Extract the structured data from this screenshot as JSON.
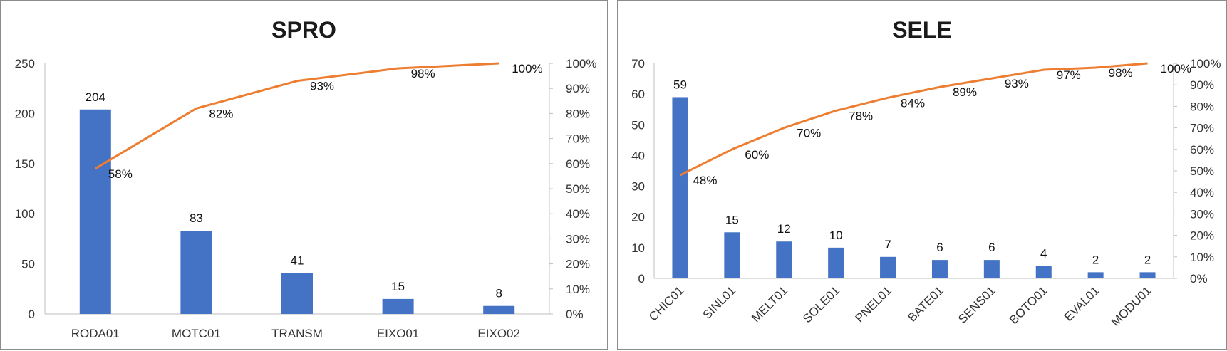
{
  "colors": {
    "bar": "#4472C4",
    "line": "#ED7D31",
    "axis": "#bfbfbf"
  },
  "chart_data": [
    {
      "type": "bar",
      "title": "SPRO",
      "categories": [
        "RODA01",
        "MOTC01",
        "TRANSM",
        "EIXO01",
        "EIXO02"
      ],
      "values": [
        204,
        83,
        41,
        15,
        8
      ],
      "cumulative_percent": [
        58,
        82,
        93,
        98,
        100
      ],
      "ylim": [
        0,
        250
      ],
      "yticks": [
        0,
        50,
        100,
        150,
        200,
        250
      ],
      "y2lim": [
        0,
        100
      ],
      "y2ticks": [
        "0%",
        "10%",
        "20%",
        "30%",
        "40%",
        "50%",
        "60%",
        "70%",
        "80%",
        "90%",
        "100%"
      ],
      "value_labels": [
        "204",
        "83",
        "41",
        "15",
        "8"
      ],
      "percent_labels": [
        "58%",
        "82%",
        "93%",
        "98%",
        "100%"
      ],
      "grid": false,
      "legend": "none",
      "rotated_xticks": false
    },
    {
      "type": "bar",
      "title": "SELE",
      "categories": [
        "CHIC01",
        "SINL01",
        "MELT01",
        "SOLE01",
        "PNEL01",
        "BATE01",
        "SENS01",
        "BOTO01",
        "EVAL01",
        "MODU01"
      ],
      "values": [
        59,
        15,
        12,
        10,
        7,
        6,
        6,
        4,
        2,
        2
      ],
      "cumulative_percent": [
        48,
        60,
        70,
        78,
        84,
        89,
        93,
        97,
        98,
        100
      ],
      "ylim": [
        0,
        70
      ],
      "yticks": [
        0,
        10,
        20,
        30,
        40,
        50,
        60,
        70
      ],
      "y2lim": [
        0,
        100
      ],
      "y2ticks": [
        "0%",
        "10%",
        "20%",
        "30%",
        "40%",
        "50%",
        "60%",
        "70%",
        "80%",
        "90%",
        "100%"
      ],
      "value_labels": [
        "59",
        "15",
        "12",
        "10",
        "7",
        "6",
        "6",
        "4",
        "2",
        "2"
      ],
      "percent_labels": [
        "48%",
        "60%",
        "70%",
        "78%",
        "84%",
        "89%",
        "93%",
        "97%",
        "98%",
        "100%"
      ],
      "grid": false,
      "legend": "none",
      "rotated_xticks": true
    }
  ]
}
